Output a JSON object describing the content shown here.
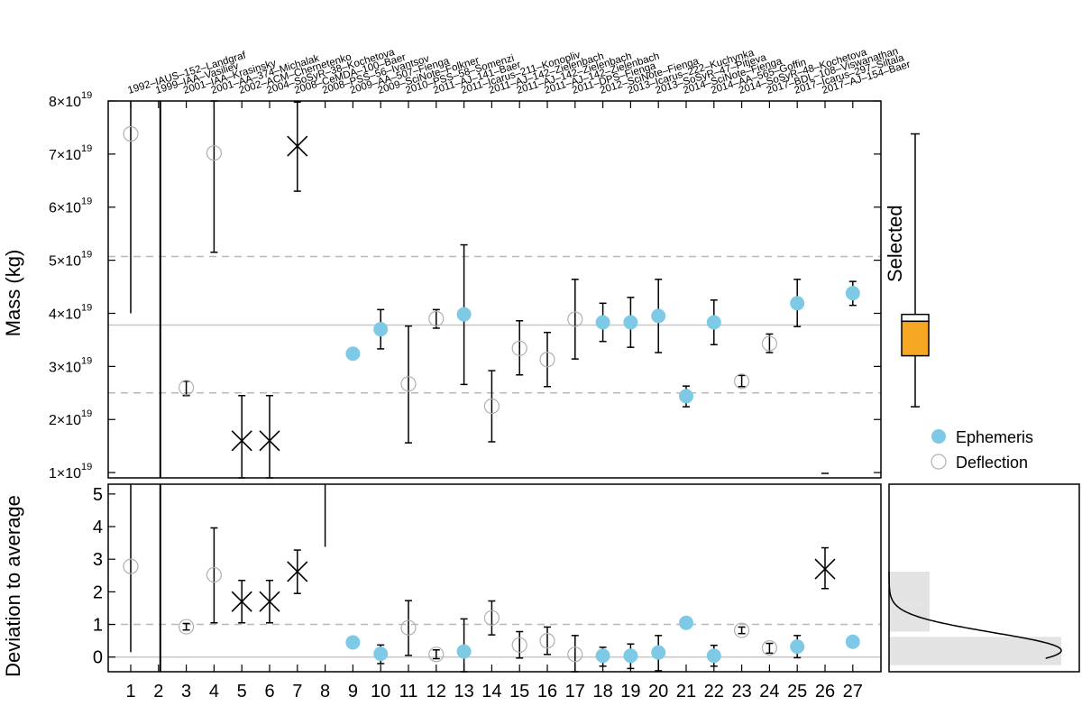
{
  "chart_data": [
    {
      "type": "scatter",
      "panel": "mass",
      "ylabel": "Mass (kg)",
      "ylim_exp19": [
        0.9,
        8.0
      ],
      "ytick_mantissas": [
        1,
        2,
        3,
        4,
        5,
        6,
        7,
        8
      ],
      "ytick_suffix": "×10",
      "ytick_exponent": "19",
      "mean": 3.78,
      "band": [
        2.5,
        5.07
      ],
      "legend": {
        "ephemeris": "Ephemeris",
        "deflection": "Deflection"
      },
      "colors": {
        "ephemeris": "#7ecae6",
        "deflection_outline": "#b0b0b0",
        "box_fill": "#f5a623",
        "errorbar": "#000000"
      },
      "legend_placement": "right",
      "references": [
        "1992–IAUS–152–Landgraf",
        "1999–IAA–Vasiliev",
        "2001–IAA–Krasinsky",
        "2001–AA–374–Michalak",
        "2002–ACM–Chernetenko",
        "2004–SoSyR–38–Kochetova",
        "2008–CeMDA–100–Baer",
        "2008–PSS–56–Ivantsov",
        "2009–AA–507–Fienga",
        "2009–SciNote–Folkner",
        "2010–PSS–58–Somenzi",
        "2011–AJ–141–Baer",
        "2011–Icarus–211–Konopliv",
        "2011–AJ–142–Zielenbach",
        "2011–AJ–142–Zielenbach",
        "2011–AJ–142–Zielenbach",
        "2011–DPS–Fienga",
        "2012–SciNote–Fienga",
        "2013–Icarus–222–Kuchynka",
        "2013–SoSyR–47–Pitjeva",
        "2014–SciNote–Fienga",
        "2014–AA–565–Goffin",
        "2014–SoSyR–48–Kochetova",
        "2017–BDL–108–Viswanathan",
        "2017–Icarus–297–Siltala",
        "2017–AJ–154–Baer"
      ],
      "points": [
        {
          "id": 1,
          "method": "deflection",
          "value": 7.38,
          "err_low": 4.0,
          "err_high": 8.0
        },
        {
          "id": 2,
          "method": "none"
        },
        {
          "id": 3,
          "method": "deflection",
          "value": 2.6,
          "err_low": 2.45,
          "err_high": 2.72
        },
        {
          "id": 4,
          "method": "deflection",
          "value": 7.02,
          "err_low": 5.15,
          "err_high": 8.0
        },
        {
          "id": 5,
          "method": "rejected",
          "value": 1.6,
          "err_low": 0.9,
          "err_high": 2.45
        },
        {
          "id": 6,
          "method": "rejected",
          "value": 1.6,
          "err_low": 0.9,
          "err_high": 2.45
        },
        {
          "id": 7,
          "method": "rejected",
          "value": 7.15,
          "err_low": 6.3,
          "err_high": 7.98
        },
        {
          "id": 8,
          "method": "none"
        },
        {
          "id": 9,
          "method": "ephemeris",
          "value": 3.24
        },
        {
          "id": 10,
          "method": "ephemeris",
          "value": 3.7,
          "err_low": 3.33,
          "err_high": 4.07
        },
        {
          "id": 11,
          "method": "deflection",
          "value": 2.67,
          "err_low": 1.56,
          "err_high": 3.76
        },
        {
          "id": 12,
          "method": "deflection",
          "value": 3.9,
          "err_low": 3.72,
          "err_high": 4.07
        },
        {
          "id": 13,
          "method": "ephemeris",
          "value": 3.98,
          "err_low": 2.66,
          "err_high": 5.29
        },
        {
          "id": 14,
          "method": "deflection",
          "value": 2.25,
          "err_low": 1.58,
          "err_high": 2.92
        },
        {
          "id": 15,
          "method": "deflection",
          "value": 3.34,
          "err_low": 2.84,
          "err_high": 3.86
        },
        {
          "id": 16,
          "method": "deflection",
          "value": 3.13,
          "err_low": 2.62,
          "err_high": 3.64
        },
        {
          "id": 17,
          "method": "deflection",
          "value": 3.89,
          "err_low": 3.14,
          "err_high": 4.64
        },
        {
          "id": 18,
          "method": "ephemeris",
          "value": 3.83,
          "err_low": 3.47,
          "err_high": 4.19
        },
        {
          "id": 19,
          "method": "ephemeris",
          "value": 3.83,
          "err_low": 3.36,
          "err_high": 4.3
        },
        {
          "id": 20,
          "method": "ephemeris",
          "value": 3.95,
          "err_low": 3.26,
          "err_high": 4.64
        },
        {
          "id": 21,
          "method": "ephemeris",
          "value": 2.44,
          "err_low": 2.24,
          "err_high": 2.63
        },
        {
          "id": 22,
          "method": "ephemeris",
          "value": 3.83,
          "err_low": 3.41,
          "err_high": 4.25
        },
        {
          "id": 23,
          "method": "deflection",
          "value": 2.72,
          "err_low": 2.62,
          "err_high": 2.83
        },
        {
          "id": 24,
          "method": "deflection",
          "value": 3.43,
          "err_low": 3.26,
          "err_high": 3.61
        },
        {
          "id": 25,
          "method": "ephemeris",
          "value": 4.19,
          "err_low": 3.75,
          "err_high": 4.64
        },
        {
          "id": 26,
          "method": "none"
        },
        {
          "id": 27,
          "method": "ephemeris",
          "value": 4.38,
          "err_low": 4.15,
          "err_high": 4.6
        }
      ],
      "selected": {
        "label": "Selected",
        "whisker_low": 2.24,
        "q1": 3.2,
        "median": 3.85,
        "q3": 3.98,
        "whisker_high": 7.38
      }
    },
    {
      "type": "scatter",
      "panel": "deviation",
      "ylabel": "Deviation to average",
      "ylim": [
        -0.45,
        5.3
      ],
      "yticks": [
        "0",
        "1",
        "2",
        "3",
        "4",
        "5"
      ],
      "reference_line": 0,
      "dashed_line": 1,
      "xticks": [
        "1",
        "2",
        "3",
        "4",
        "5",
        "6",
        "7",
        "8",
        "9",
        "10",
        "11",
        "12",
        "13",
        "14",
        "15",
        "16",
        "17",
        "18",
        "19",
        "20",
        "21",
        "22",
        "23",
        "24",
        "25",
        "26",
        "27"
      ],
      "points": [
        {
          "id": 1,
          "method": "deflection",
          "value": 2.78,
          "err_low": 0.15,
          "err_high": 5.3
        },
        {
          "id": 2,
          "method": "none"
        },
        {
          "id": 3,
          "method": "deflection",
          "value": 0.93,
          "err_low": 0.83,
          "err_high": 1.03
        },
        {
          "id": 4,
          "method": "deflection",
          "value": 2.52,
          "err_low": 1.05,
          "err_high": 3.96
        },
        {
          "id": 5,
          "method": "rejected",
          "value": 1.7,
          "err_low": 1.05,
          "err_high": 2.35
        },
        {
          "id": 6,
          "method": "rejected",
          "value": 1.7,
          "err_low": 1.05,
          "err_high": 2.35
        },
        {
          "id": 7,
          "method": "rejected",
          "value": 2.62,
          "err_low": 1.95,
          "err_high": 3.28
        },
        {
          "id": 8,
          "method": "bar_only",
          "err_low": 3.38,
          "err_high": 5.3
        },
        {
          "id": 9,
          "method": "ephemeris",
          "value": 0.45
        },
        {
          "id": 10,
          "method": "ephemeris",
          "value": 0.1,
          "err_low": -0.2,
          "err_high": 0.37
        },
        {
          "id": 11,
          "method": "deflection",
          "value": 0.9,
          "err_low": 0.05,
          "err_high": 1.73
        },
        {
          "id": 12,
          "method": "deflection",
          "value": 0.08,
          "err_low": -0.05,
          "err_high": 0.22
        },
        {
          "id": 13,
          "method": "ephemeris",
          "value": 0.17,
          "err_low": -0.82,
          "err_high": 1.17
        },
        {
          "id": 14,
          "method": "deflection",
          "value": 1.2,
          "err_low": 0.68,
          "err_high": 1.72
        },
        {
          "id": 15,
          "method": "deflection",
          "value": 0.37,
          "err_low": -0.03,
          "err_high": 0.78
        },
        {
          "id": 16,
          "method": "deflection",
          "value": 0.5,
          "err_low": 0.08,
          "err_high": 0.92
        },
        {
          "id": 17,
          "method": "deflection",
          "value": 0.08,
          "err_low": -0.5,
          "err_high": 0.66
        },
        {
          "id": 18,
          "method": "ephemeris",
          "value": 0.04,
          "err_low": -0.28,
          "err_high": 0.3
        },
        {
          "id": 19,
          "method": "ephemeris",
          "value": 0.04,
          "err_low": -0.35,
          "err_high": 0.4
        },
        {
          "id": 20,
          "method": "ephemeris",
          "value": 0.14,
          "err_low": -0.42,
          "err_high": 0.66
        },
        {
          "id": 21,
          "method": "ephemeris",
          "value": 1.05
        },
        {
          "id": 22,
          "method": "ephemeris",
          "value": 0.04,
          "err_low": -0.28,
          "err_high": 0.36
        },
        {
          "id": 23,
          "method": "deflection",
          "value": 0.82,
          "err_low": 0.72,
          "err_high": 0.92
        },
        {
          "id": 24,
          "method": "deflection",
          "value": 0.28,
          "err_low": 0.12,
          "err_high": 0.42
        },
        {
          "id": 25,
          "method": "ephemeris",
          "value": 0.32,
          "err_low": -0.02,
          "err_high": 0.66
        },
        {
          "id": 26,
          "method": "rejected",
          "value": 2.7,
          "err_low": 2.1,
          "err_high": 3.35
        },
        {
          "id": 27,
          "method": "ephemeris",
          "value": 0.47,
          "err_low": 0.32,
          "err_high": 0.62
        }
      ],
      "histogram": {
        "bins": [
          {
            "low": -0.25,
            "high": 0.62,
            "count": 17
          },
          {
            "low": 0.78,
            "high": 1.6,
            "count": 4
          },
          {
            "low": 1.6,
            "high": 2.62,
            "count": 4
          }
        ],
        "curve_color": "#000000",
        "bar_color": "#e3e3e3"
      }
    }
  ]
}
